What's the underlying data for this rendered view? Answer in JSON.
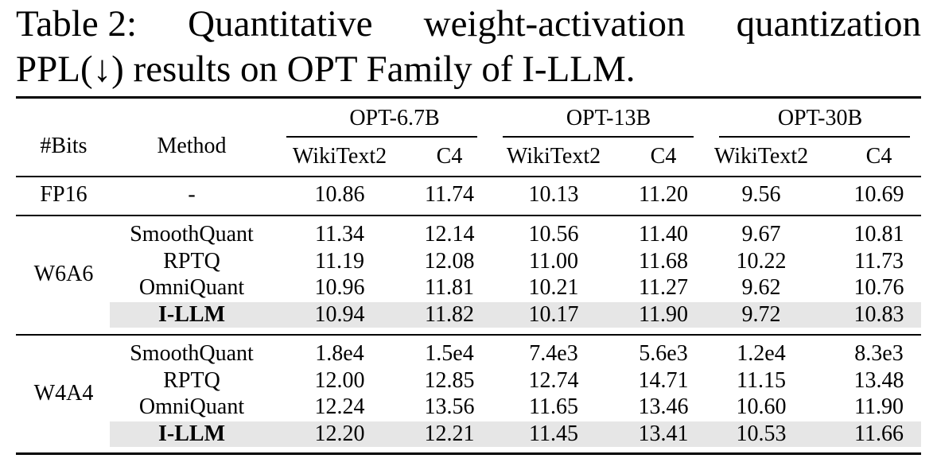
{
  "caption": {
    "label": "Table 2:",
    "line1_words": [
      "Quantitative",
      "weight-activation",
      "quantization"
    ],
    "line2": "PPL(↓) results on OPT Family of I-LLM."
  },
  "header": {
    "bits": "#Bits",
    "method": "Method",
    "models": [
      "OPT-6.7B",
      "OPT-13B",
      "OPT-30B"
    ],
    "datasets": [
      "WikiText2",
      "C4",
      "WikiText2",
      "C4",
      "WikiText2",
      "C4"
    ]
  },
  "groups": [
    {
      "bits": "FP16",
      "rows": [
        {
          "method": "-",
          "highlight": false,
          "values": [
            "10.86",
            "11.74",
            "10.13",
            "11.20",
            "9.56",
            "10.69"
          ]
        }
      ]
    },
    {
      "bits": "W6A6",
      "rows": [
        {
          "method": "SmoothQuant",
          "highlight": false,
          "values": [
            "11.34",
            "12.14",
            "10.56",
            "11.40",
            "9.67",
            "10.81"
          ]
        },
        {
          "method": "RPTQ",
          "highlight": false,
          "values": [
            "11.19",
            "12.08",
            "11.00",
            "11.68",
            "10.22",
            "11.73"
          ]
        },
        {
          "method": "OmniQuant",
          "highlight": false,
          "values": [
            "10.96",
            "11.81",
            "10.21",
            "11.27",
            "9.62",
            "10.76"
          ]
        },
        {
          "method": "I-LLM",
          "highlight": true,
          "values": [
            "10.94",
            "11.82",
            "10.17",
            "11.90",
            "9.72",
            "10.83"
          ]
        }
      ]
    },
    {
      "bits": "W4A4",
      "rows": [
        {
          "method": "SmoothQuant",
          "highlight": false,
          "values": [
            "1.8e4",
            "1.5e4",
            "7.4e3",
            "5.6e3",
            "1.2e4",
            "8.3e3"
          ]
        },
        {
          "method": "RPTQ",
          "highlight": false,
          "values": [
            "12.00",
            "12.85",
            "12.74",
            "14.71",
            "11.15",
            "13.48"
          ]
        },
        {
          "method": "OmniQuant",
          "highlight": false,
          "values": [
            "12.24",
            "13.56",
            "11.65",
            "13.46",
            "10.60",
            "11.90"
          ]
        },
        {
          "method": "I-LLM",
          "highlight": true,
          "values": [
            "12.20",
            "12.21",
            "11.45",
            "13.41",
            "10.53",
            "11.66"
          ]
        }
      ]
    }
  ]
}
